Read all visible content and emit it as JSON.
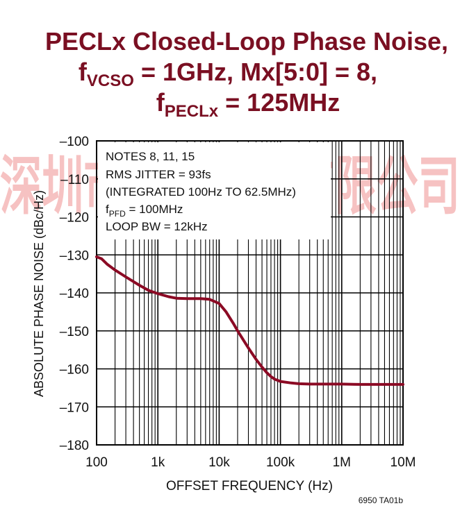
{
  "colors": {
    "curve": "#8b0a24",
    "title": "#7a0f22",
    "grid": "#000000"
  },
  "chart_data": {
    "type": "line",
    "title": {
      "line1": "PECLx Closed-Loop Phase Noise,",
      "line2_prefix": "f",
      "line2_sub": "VCSO",
      "line2_mid": " = 1GHz, Mx[5:0] = 8,",
      "line3_prefix": "f",
      "line3_sub": "PECLx",
      "line3_mid": " = 125MHz"
    },
    "xlabel": "OFFSET FREQUENCY (Hz)",
    "ylabel": "ABSOLUTE PHASE NOISE (dBc/Hz)",
    "x_scale": "log",
    "xlim": [
      100,
      10000000
    ],
    "ylim": [
      -180,
      -100
    ],
    "x_ticks": [
      {
        "value": 100,
        "label": "100"
      },
      {
        "value": 1000,
        "label": "1k"
      },
      {
        "value": 10000,
        "label": "10k"
      },
      {
        "value": 100000,
        "label": "100k"
      },
      {
        "value": 1000000,
        "label": "1M"
      },
      {
        "value": 10000000,
        "label": "10M"
      }
    ],
    "y_ticks": [
      {
        "value": -100,
        "label": "–100"
      },
      {
        "value": -110,
        "label": "–110"
      },
      {
        "value": -120,
        "label": "–120"
      },
      {
        "value": -130,
        "label": "–130"
      },
      {
        "value": -140,
        "label": "–140"
      },
      {
        "value": -150,
        "label": "–150"
      },
      {
        "value": -160,
        "label": "–160"
      },
      {
        "value": -170,
        "label": "–170"
      },
      {
        "value": -180,
        "label": "–180"
      }
    ],
    "grid": true,
    "annotations": {
      "line1": "NOTES 8, 11, 15",
      "line2": "RMS JITTER = 93fs",
      "line3": "(INTEGRATED 100Hz TO 62.5MHz)",
      "line4_prefix": "f",
      "line4_sub": "PFD",
      "line4_mid": " = 100MHz",
      "line5": "LOOP BW = 12kHz"
    },
    "series": [
      {
        "x": [
          100,
          120,
          150,
          200,
          300,
          500,
          700,
          1000,
          1500,
          2000,
          3000,
          5000,
          7000,
          10000,
          13000,
          17000,
          20000,
          30000,
          40000,
          50000,
          60000,
          70000,
          80000,
          100000,
          150000,
          200000,
          300000,
          500000,
          1000000,
          2000000,
          5000000,
          10000000
        ],
        "y": [
          -130.5,
          -131,
          -132.5,
          -134,
          -135.8,
          -138,
          -139.3,
          -140.2,
          -141,
          -141.4,
          -141.5,
          -141.5,
          -141.7,
          -142.8,
          -145,
          -148,
          -150,
          -154.5,
          -157.5,
          -159.5,
          -161,
          -162,
          -162.7,
          -163.3,
          -163.7,
          -163.9,
          -164,
          -164,
          -164,
          -164.1,
          -164.1,
          -164.1
        ]
      }
    ]
  },
  "figure_id": "6950 TA01b",
  "watermark": "深圳市唯馳電子有限公司"
}
